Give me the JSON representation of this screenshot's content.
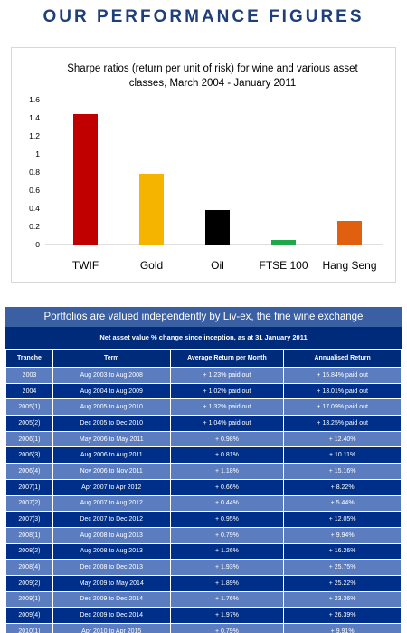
{
  "header": {
    "title": "OUR PERFORMANCE FIGURES"
  },
  "chart_data": {
    "type": "bar",
    "title": "Sharpe ratios (return per unit of risk) for wine and various asset classes, March 2004 - January 2011",
    "categories": [
      "TWIF",
      "Gold",
      "Oil",
      "FTSE 100",
      "Hang Seng"
    ],
    "values": [
      1.44,
      0.78,
      0.38,
      0.05,
      0.26
    ],
    "colors": [
      "#c00000",
      "#f4b400",
      "#000000",
      "#1ea84a",
      "#e06010"
    ],
    "ylim": [
      0,
      1.6
    ],
    "yticks": [
      "0",
      "0.2",
      "0.4",
      "0.6",
      "0.8",
      "1",
      "1.2",
      "1.4",
      "1.6"
    ],
    "xlabel": "",
    "ylabel": "",
    "grid": false
  },
  "table": {
    "banner": "Portfolios are valued independently by Liv-ex, the fine wine exchange",
    "subheading": "Net asset value % change since inception, as at 31 January 2011",
    "headers": [
      "Tranche",
      "Term",
      "Average Return per Month",
      "Annualised Return"
    ],
    "rows": [
      [
        "2003",
        "Aug 2003 to Aug 2008",
        "+ 1.23% paid out",
        "+ 15.84% paid out"
      ],
      [
        "2004",
        "Aug 2004 to Aug 2009",
        "+ 1.02% paid out",
        "+ 13.01% paid out"
      ],
      [
        "2005(1)",
        "Aug 2005 to Aug 2010",
        "+ 1.32% paid out",
        "+ 17.09% paid out"
      ],
      [
        "2005(2)",
        "Dec 2005 to Dec 2010",
        "+ 1.04% paid out",
        "+ 13.25% paid out"
      ],
      [
        "2006(1)",
        "May 2006 to May 2011",
        "+ 0.98%",
        "+ 12.40%"
      ],
      [
        "2006(3)",
        "Aug 2006 to Aug 2011",
        "+ 0.81%",
        "+ 10.11%"
      ],
      [
        "2006(4)",
        "Nov 2006 to Nov 2011",
        "+ 1.18%",
        "+ 15.16%"
      ],
      [
        "2007(1)",
        "Apr 2007 to Apr 2012",
        "+ 0.66%",
        "+ 8.22%"
      ],
      [
        "2007(2)",
        "Aug 2007 to Aug 2012",
        "+ 0.44%",
        "+ 5.44%"
      ],
      [
        "2007(3)",
        "Dec 2007 to Dec 2012",
        "+ 0.95%",
        "+ 12.05%"
      ],
      [
        "2008(1)",
        "Aug 2008 to Aug 2013",
        "+ 0.79%",
        "+ 9.94%"
      ],
      [
        "2008(2)",
        "Aug 2008 to Aug 2013",
        "+ 1.26%",
        "+ 16.26%"
      ],
      [
        "2008(4)",
        "Dec 2008 to Dec 2013",
        "+ 1.93%",
        "+ 25.75%"
      ],
      [
        "2009(2)",
        "May 2009 to May 2014",
        "+ 1.89%",
        "+ 25.22%"
      ],
      [
        "2009(1)",
        "Dec 2009 to Dec 2014",
        "+ 1.76%",
        "+ 23.36%"
      ],
      [
        "2009(4)",
        "Dec 2009 to Dec 2014",
        "+ 1.97%",
        "+ 26.39%"
      ],
      [
        "2010(1)",
        "Apr 2010 to Apr 2015",
        "+ 0.79%",
        "+ 9.91%"
      ]
    ]
  }
}
